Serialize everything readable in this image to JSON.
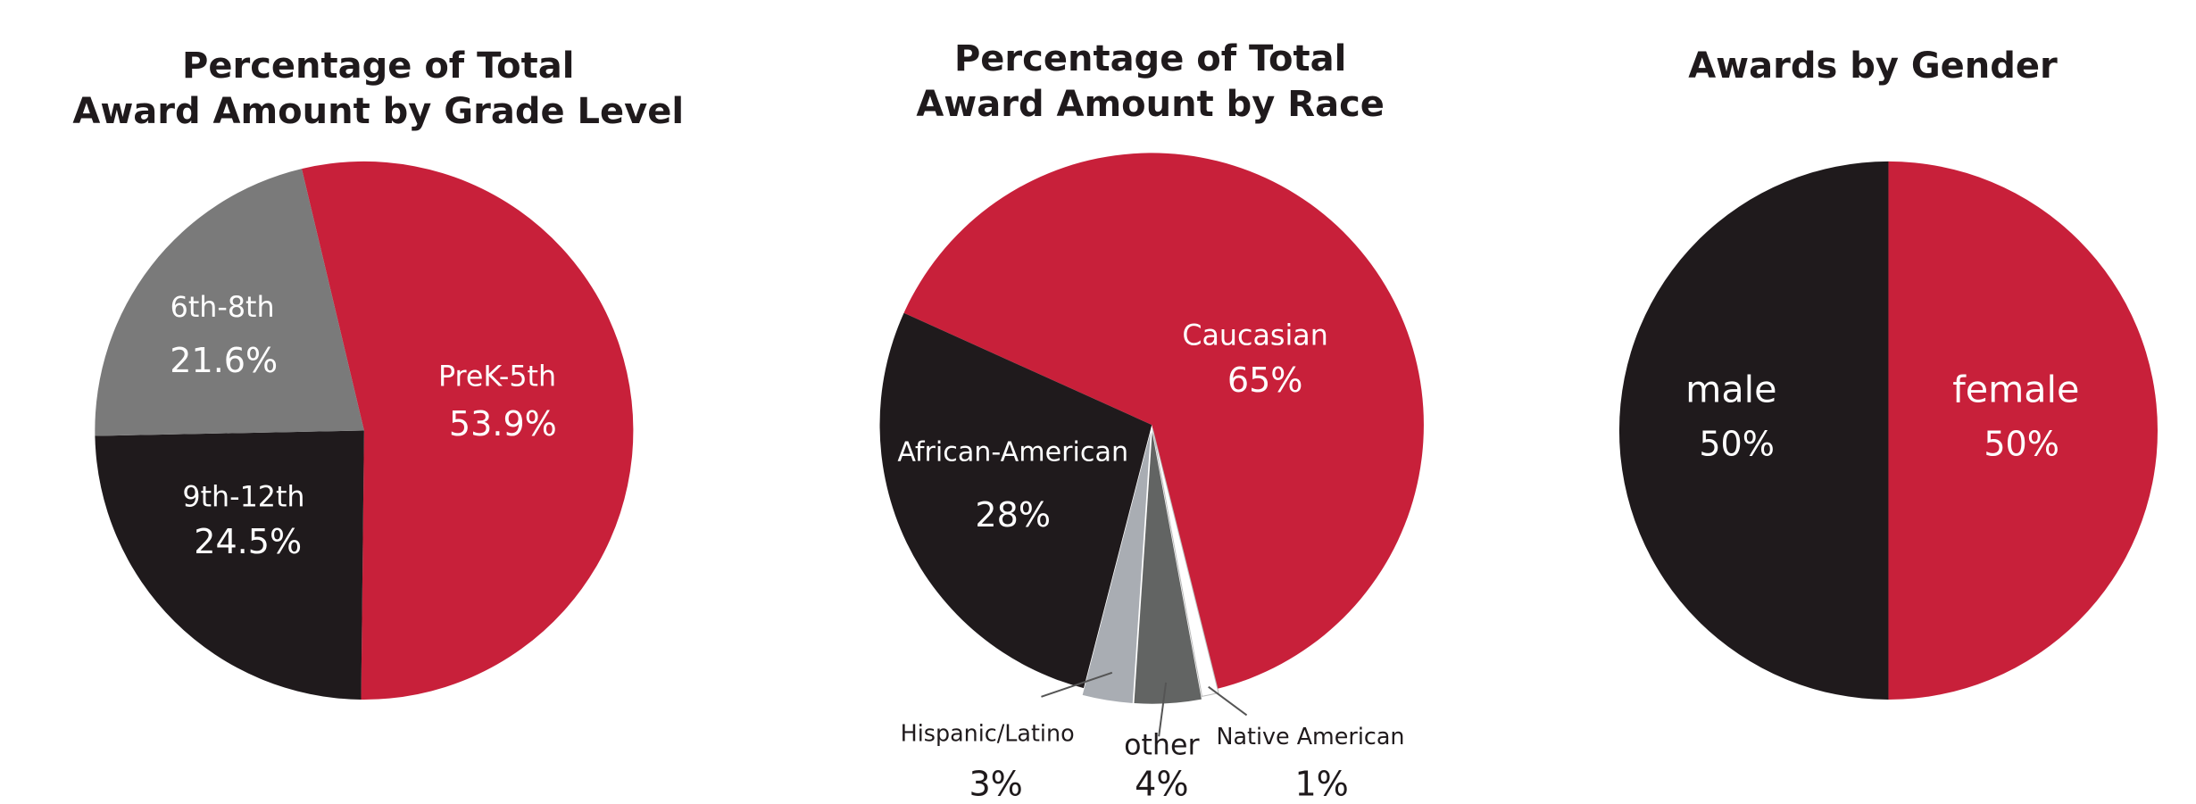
{
  "chart_data": [
    {
      "type": "pie",
      "title": [
        "Percentage of Total",
        "Award Amount by Grade Level"
      ],
      "categories": [
        "PreK-5th",
        "9th-12th",
        "6th-8th"
      ],
      "values": [
        53.9,
        24.5,
        21.6
      ],
      "value_labels": [
        "53.9%",
        "24.5%",
        "21.6%"
      ],
      "colors": [
        "#c8203a",
        "#1f1a1c",
        "#7a7a7a"
      ]
    },
    {
      "type": "pie",
      "title": [
        "Percentage of Total",
        "Award Amount by Race"
      ],
      "categories": [
        "Caucasian",
        "Native American",
        "other",
        "Hispanic/Latino",
        "African-American"
      ],
      "values": [
        65,
        1,
        4,
        3,
        28
      ],
      "value_labels": [
        "65%",
        "1%",
        "4%",
        "3%",
        "28%"
      ],
      "colors": [
        "#c8203a",
        "#ffffff",
        "#626463",
        "#a9adb3",
        "#1f1a1c"
      ]
    },
    {
      "type": "pie",
      "title": [
        "Awards by Gender"
      ],
      "categories": [
        "female",
        "male"
      ],
      "values": [
        50,
        50
      ],
      "value_labels": [
        "50%",
        "50%"
      ],
      "colors": [
        "#c8203a",
        "#1f1a1c"
      ]
    }
  ]
}
